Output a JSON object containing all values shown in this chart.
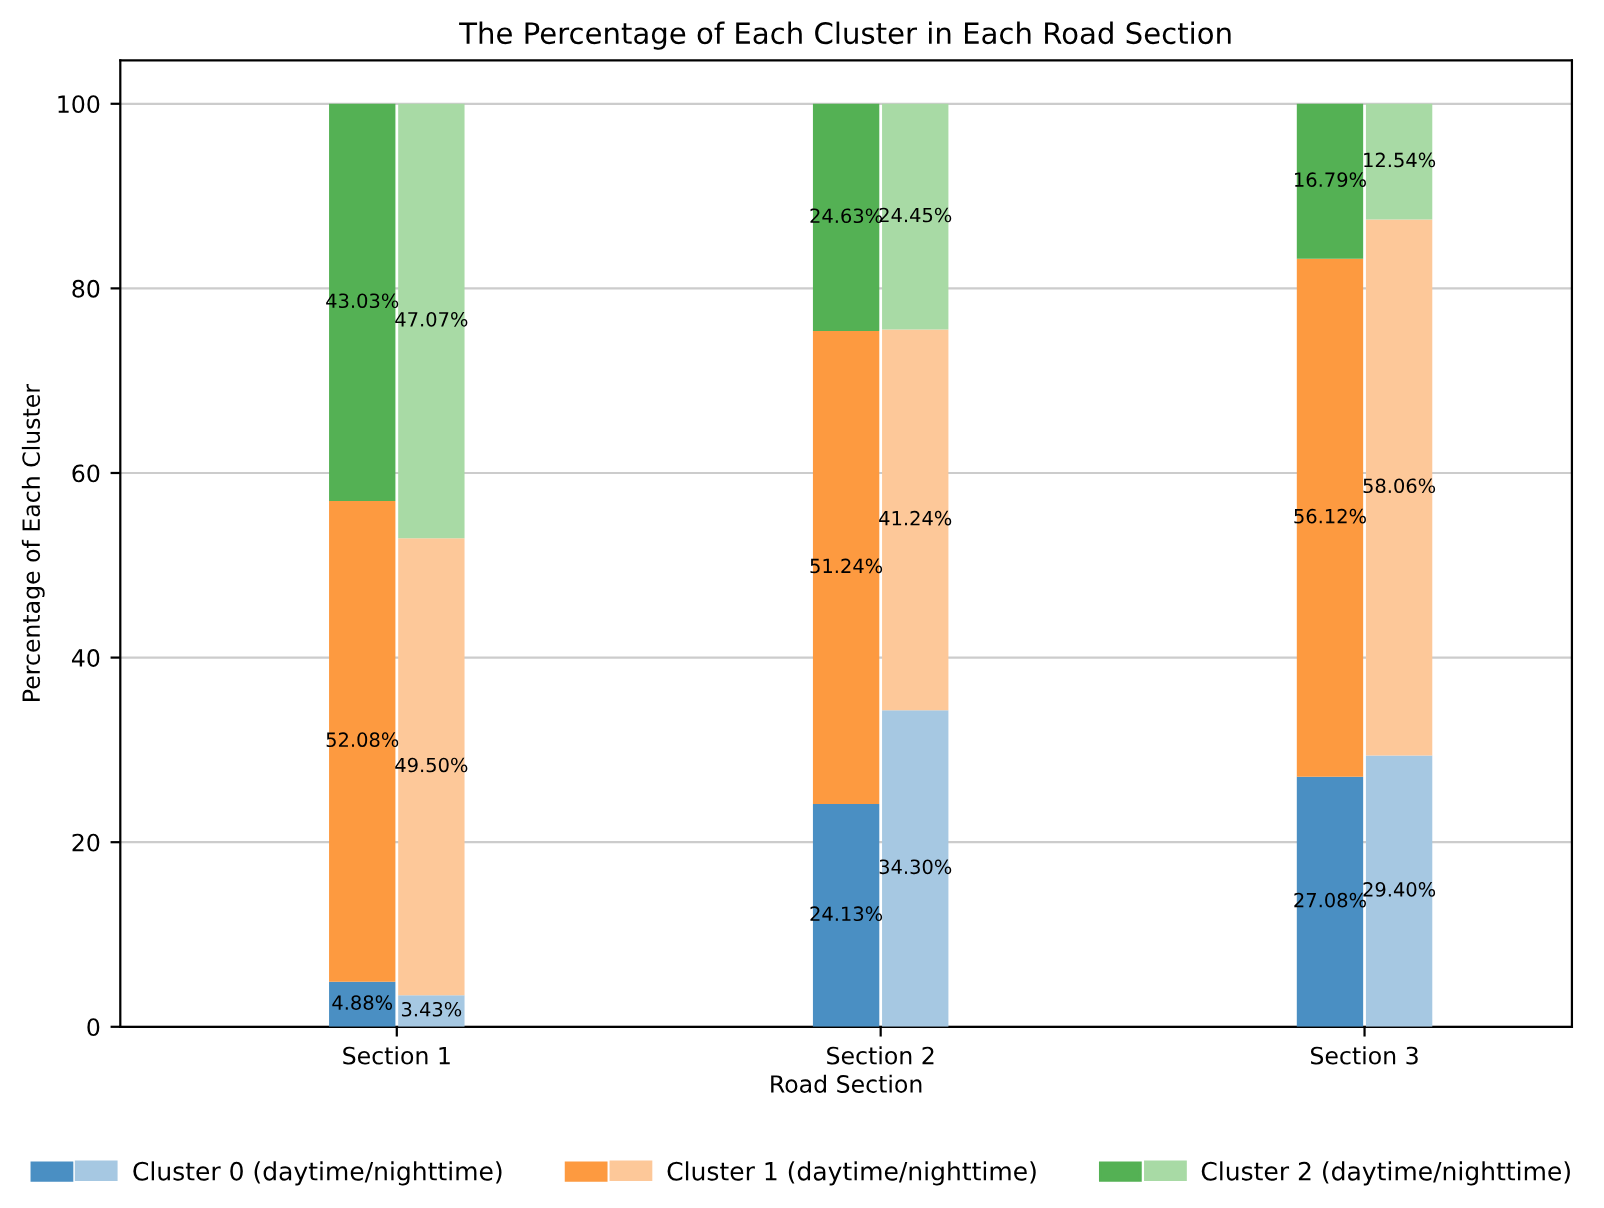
{
  "chart_data": {
    "type": "bar",
    "stacked": true,
    "title": "The Percentage of Each Cluster in Each Road Section",
    "xlabel": "Road Section",
    "ylabel": "Percentage of Each Cluster",
    "categories": [
      null,
      null,
      null,
      "Section 1",
      null,
      null,
      null,
      null,
      null,
      null,
      "Section 2",
      null,
      null,
      null,
      null,
      null,
      null,
      "Section 3",
      null,
      null,
      null
    ],
    "series": [
      {
        "name": "Cluster 0 (daytime/nighttime)",
        "colors": [
          null,
          null,
          null,
          "#4a8fc3",
          "#a6c8e2",
          null,
          null,
          null,
          null,
          null,
          "#4a8fc3",
          "#a6c8e2",
          null,
          null,
          null,
          null,
          null,
          "#4a8fc3",
          "#a6c8e2",
          null,
          null
        ],
        "values": [
          null,
          null,
          null,
          4.88,
          3.43,
          null,
          null,
          null,
          null,
          null,
          24.13,
          34.3,
          null,
          null,
          null,
          null,
          null,
          27.08,
          29.4,
          null,
          null
        ],
        "value_labels": [
          null,
          null,
          null,
          "4.88%",
          "3.43%",
          null,
          null,
          null,
          null,
          null,
          "24.13%",
          "34.30%",
          null,
          null,
          null,
          null,
          null,
          "27.08%",
          "29.40%",
          null,
          null
        ]
      },
      {
        "name": "Cluster 1 (daytime/nighttime)",
        "colors": [
          null,
          null,
          null,
          "#fd9a40",
          "#fdc899",
          null,
          null,
          null,
          null,
          null,
          "#fd9a40",
          "#fdc899",
          null,
          null,
          null,
          null,
          null,
          "#fd9a40",
          "#fdc899",
          null,
          null
        ],
        "values": [
          null,
          null,
          null,
          52.08,
          49.5,
          null,
          null,
          null,
          null,
          null,
          51.24,
          41.24,
          null,
          null,
          null,
          null,
          null,
          56.12,
          58.06,
          null,
          null
        ],
        "value_labels": [
          null,
          null,
          null,
          "52.08%",
          "49.50%",
          null,
          null,
          null,
          null,
          null,
          "51.24%",
          "41.24%",
          null,
          null,
          null,
          null,
          null,
          "56.12%",
          "58.06%",
          null,
          null
        ]
      },
      {
        "name": "Cluster 2 (daytime/nighttime)",
        "colors": [
          null,
          null,
          null,
          "#54b154",
          "#a8daa5",
          null,
          null,
          null,
          null,
          null,
          "#54b154",
          "#a8daa5",
          null,
          null,
          null,
          null,
          null,
          "#54b154",
          "#a8daa5",
          null,
          null
        ],
        "values": [
          null,
          null,
          null,
          43.03,
          47.07,
          null,
          null,
          null,
          null,
          null,
          24.63,
          24.45,
          null,
          null,
          null,
          null,
          null,
          16.79,
          12.54,
          null,
          null
        ],
        "value_labels": [
          null,
          null,
          null,
          "43.03%",
          "47.07%",
          null,
          null,
          null,
          null,
          null,
          "24.63%",
          "24.45%",
          null,
          null,
          null,
          null,
          null,
          "16.79%",
          "12.54%",
          null,
          null
        ]
      }
    ],
    "ylim": [
      0,
      104.7
    ],
    "yticks": [
      0,
      20,
      40,
      60,
      80,
      100
    ],
    "grid": "y",
    "legend": "bottom"
  }
}
